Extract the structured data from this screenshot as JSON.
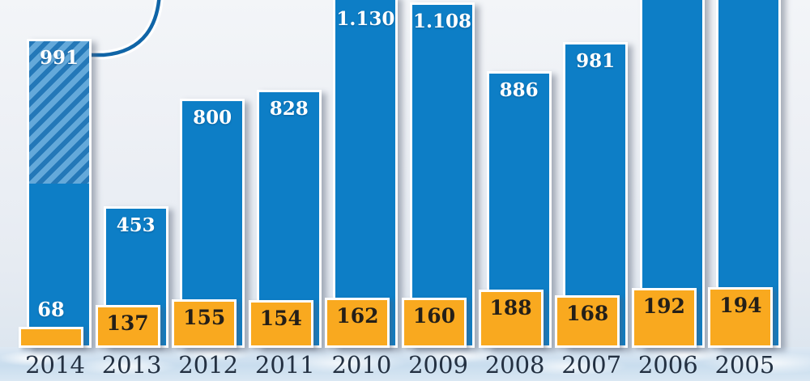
{
  "chart_data": {
    "type": "bar",
    "title": "",
    "categories": [
      "2014",
      "2013",
      "2012",
      "2011",
      "2010",
      "2009",
      "2008",
      "2007",
      "2006",
      "2005"
    ],
    "series": [
      {
        "name": "blue-total",
        "color": "#0d7ec6",
        "values": [
          991,
          453,
          800,
          828,
          1130,
          1108,
          886,
          981,
          null,
          null
        ],
        "labels": [
          "991",
          "453",
          "800",
          "828",
          "1.130",
          "1.108",
          "886",
          "981",
          null,
          null
        ]
      },
      {
        "name": "orange-subset",
        "color": "#f9a91f",
        "values": [
          68,
          137,
          155,
          154,
          162,
          160,
          188,
          168,
          192,
          194
        ],
        "labels": [
          "68",
          "137",
          "155",
          "154",
          "162",
          "160",
          "188",
          "168",
          "192",
          "194"
        ]
      }
    ],
    "axis": {
      "y_axis_visible": false,
      "gridlines": false,
      "x_labels": [
        "2014",
        "2013",
        "2012",
        "2011",
        "2010",
        "2009",
        "2008",
        "2007",
        "2006",
        "2005"
      ]
    },
    "annotations": {
      "hatched_bar": {
        "category": "2014",
        "series": "blue-total",
        "top_fraction": 0.46,
        "style": "diagonal-stripes"
      },
      "callout_curve_to": "2014"
    },
    "cropped_at_top": [
      "2010",
      "2006",
      "2005"
    ]
  },
  "styles": {
    "blue_bar": "#0d7ec6",
    "orange_bar": "#f9a91f",
    "hatch_dark": "#2478b8",
    "hatch_light": "#64a9da",
    "bar_border": "#ffffff",
    "blue_value_text": "#ffffff",
    "orange_value_text": "#241f18",
    "year_text": "#233041",
    "callout_stroke": "#1065a7"
  }
}
